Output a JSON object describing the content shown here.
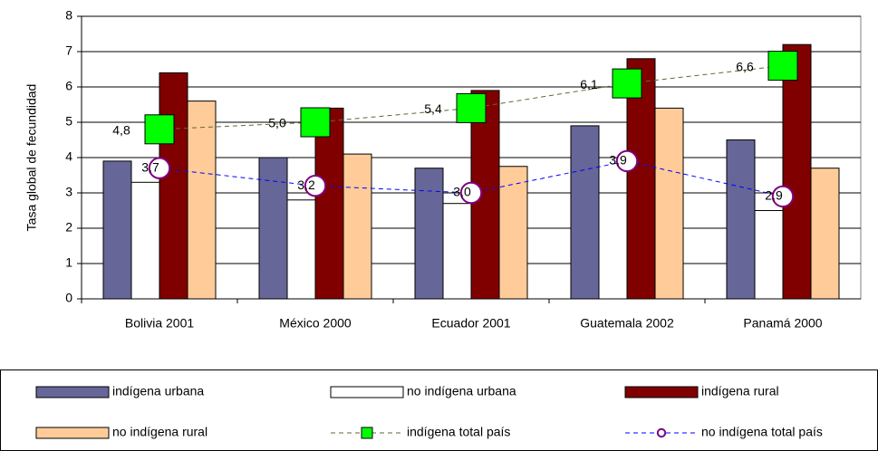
{
  "chart_data": {
    "type": "bar",
    "y_label": "Tasa global de fecundidad",
    "categories": [
      "Bolivia 2001",
      "México 2000",
      "Ecuador 2001",
      "Guatemala 2002",
      "Panamá 2000"
    ],
    "ylim": [
      0,
      8
    ],
    "yticks": [
      0,
      1,
      2,
      3,
      4,
      5,
      6,
      7,
      8
    ],
    "series": [
      {
        "name": "indígena urbana",
        "color": "#666699",
        "values": [
          3.9,
          4.0,
          3.7,
          4.9,
          4.5
        ]
      },
      {
        "name": "no indígena urbana",
        "color": "#ffffff",
        "values": [
          3.3,
          2.8,
          2.7,
          3.0,
          2.5
        ]
      },
      {
        "name": "indígena rural",
        "color": "#800000",
        "values": [
          6.4,
          5.4,
          5.9,
          6.8,
          7.2
        ]
      },
      {
        "name": "no indígena rural",
        "color": "#ffcc99",
        "values": [
          5.6,
          4.1,
          3.75,
          5.4,
          3.7
        ]
      },
      {
        "name": "indígena total país",
        "type": "line",
        "marker": "square",
        "color": "#00ff00",
        "line_color": "#666633",
        "values": [
          4.8,
          5.0,
          5.4,
          6.1,
          6.6
        ],
        "value_labels": [
          "4,8",
          "5,0",
          "5,4",
          "6,1",
          "6,6"
        ]
      },
      {
        "name": "no indígena total país",
        "type": "line",
        "marker": "circle",
        "color": "#800080",
        "line_color": "#0000ff",
        "values": [
          3.7,
          3.2,
          3.0,
          3.9,
          2.9
        ],
        "value_labels": [
          "3,7",
          "3,2",
          "3,0",
          "3,9",
          "2,9"
        ]
      }
    ]
  }
}
